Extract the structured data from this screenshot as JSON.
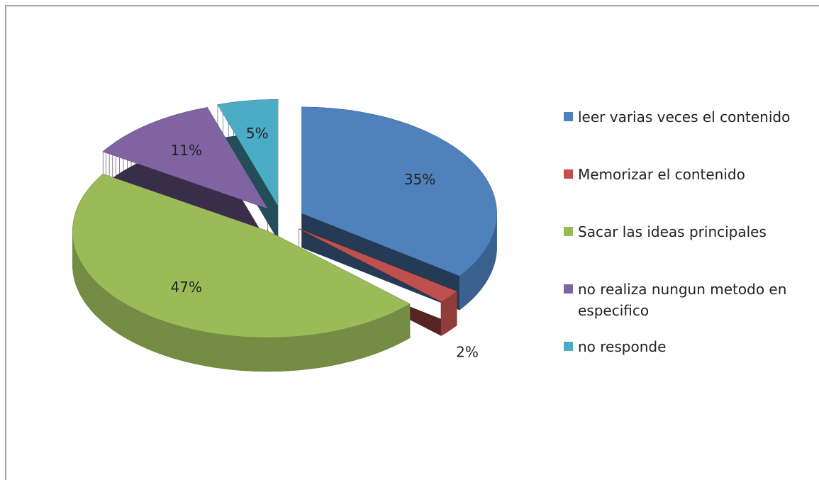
{
  "chart_data": {
    "type": "pie3d",
    "categories": [
      "leer varias veces el contenido",
      "Memorizar el contenido",
      "Sacar las ideas principales",
      "no realiza nungun metodo en especifico",
      "no responde"
    ],
    "values": [
      35,
      2,
      47,
      11,
      5
    ],
    "value_labels": [
      "35%",
      "2%",
      "47%",
      "11%",
      "5%"
    ],
    "colors": [
      "#4f81bd",
      "#c0504d",
      "#9bbb59",
      "#8064a2",
      "#4bacc6"
    ],
    "legend": "right"
  }
}
